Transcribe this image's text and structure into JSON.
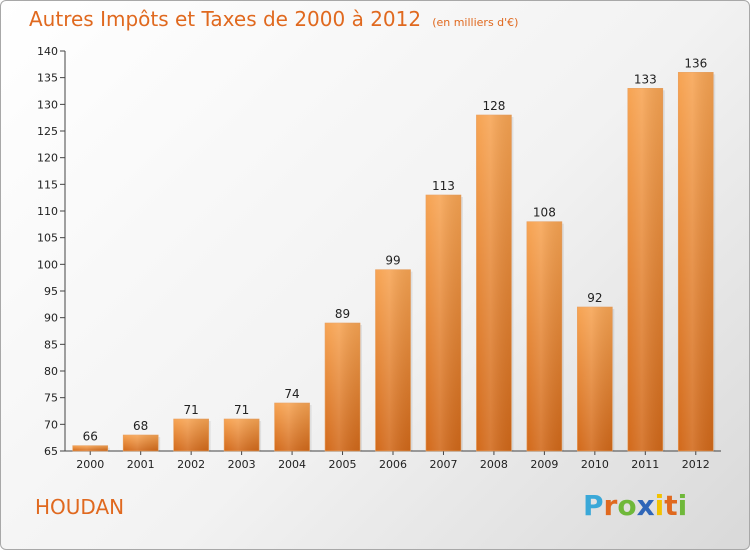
{
  "chart_data": {
    "type": "bar",
    "title": "Autres Impôts et Taxes de 2000 à 2012",
    "subtitle": "(en milliers d'€)",
    "categories": [
      "2000",
      "2001",
      "2002",
      "2003",
      "2004",
      "2005",
      "2006",
      "2007",
      "2008",
      "2009",
      "2010",
      "2011",
      "2012"
    ],
    "values": [
      66,
      68,
      71,
      71,
      74,
      89,
      99,
      113,
      128,
      108,
      92,
      133,
      136
    ],
    "ylim": [
      65,
      140
    ],
    "yticks": [
      65,
      70,
      75,
      80,
      85,
      90,
      95,
      100,
      105,
      110,
      115,
      120,
      125,
      130,
      135,
      140
    ],
    "grid": false,
    "bar_color": "#f08a30",
    "xlabel": "",
    "ylabel": ""
  },
  "city": "HOUDAN",
  "logo": {
    "letters": [
      "P",
      "r",
      "o",
      "x",
      "i",
      "t",
      "i"
    ],
    "colors": [
      "#3aa8d8",
      "#e0691f",
      "#6fb83a",
      "#2f66b8",
      "#f2c200",
      "#e0691f",
      "#6fb83a"
    ]
  },
  "title_color": "#e0691f"
}
